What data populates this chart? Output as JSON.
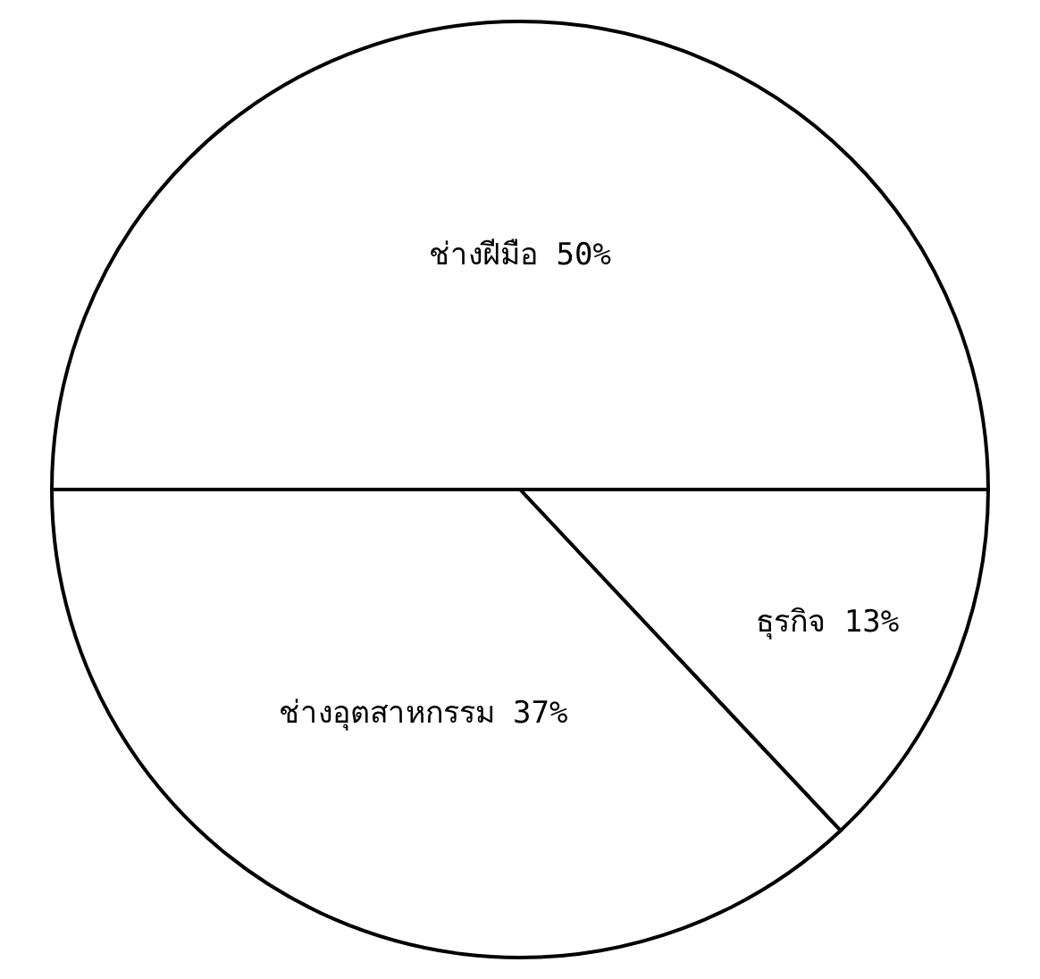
{
  "chart_data": {
    "type": "pie",
    "categories": [
      "ช่างฝีมือ",
      "ธุรกิจ",
      "ช่างอุตสาหกรรม"
    ],
    "values": [
      50,
      13,
      37
    ],
    "value_labels": [
      "50%",
      "13%",
      "37%"
    ],
    "colors": [
      "#ffffff",
      "#ffffff",
      "#ffffff"
    ],
    "legend": false
  }
}
